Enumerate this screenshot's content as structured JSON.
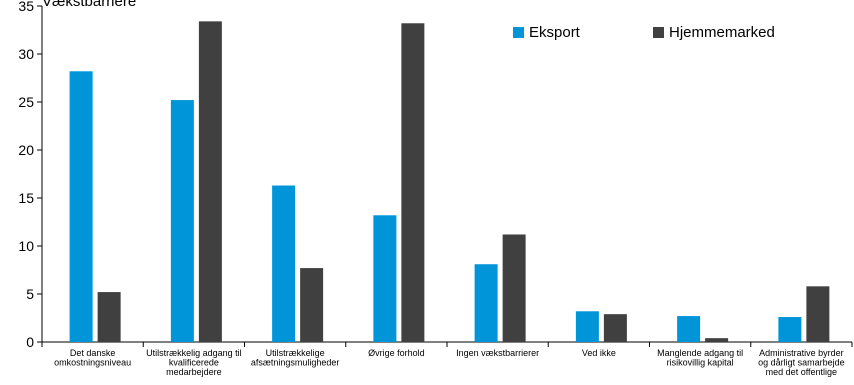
{
  "chart_data": {
    "type": "bar",
    "title_fragment": "Vækstbarriere",
    "ylim": [
      0,
      35
    ],
    "yticks": [
      0,
      5,
      10,
      15,
      20,
      25,
      30,
      35
    ],
    "grid": false,
    "legend_position": "top-right",
    "categories": [
      [
        "Det danske",
        "omkostningsniveau"
      ],
      [
        "Utilstrækkelig adgang til",
        "kvalificerede",
        "medarbejdere"
      ],
      [
        "Utilstrækkelige",
        "afsætningsmuligheder"
      ],
      [
        "Øvrige forhold"
      ],
      [
        "Ingen vækstbarrierer"
      ],
      [
        "Ved ikke"
      ],
      [
        "Manglende adgang til",
        "risikovillig kapital"
      ],
      [
        "Administrative byrder",
        "og dårligt samarbejde",
        "med det offentlige"
      ]
    ],
    "series": [
      {
        "name": "Eksport",
        "color": "#0095D9",
        "values": [
          28.2,
          25.2,
          16.3,
          13.2,
          8.1,
          3.2,
          2.7,
          2.6
        ]
      },
      {
        "name": "Hjemmemarked",
        "color": "#404040",
        "values": [
          5.2,
          33.4,
          7.7,
          33.2,
          11.2,
          2.9,
          0.4,
          5.8
        ]
      }
    ]
  }
}
